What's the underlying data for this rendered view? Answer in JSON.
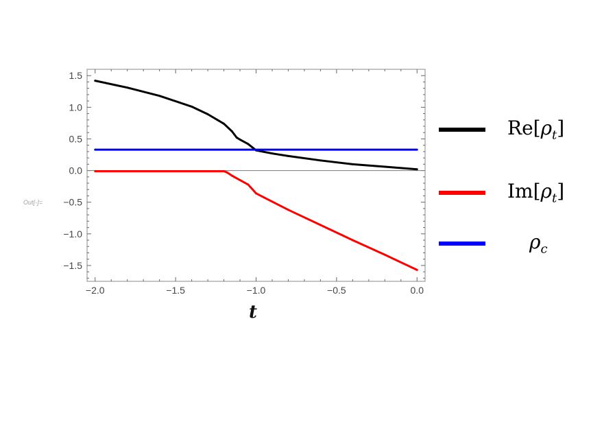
{
  "out_label": "Out[◦]=",
  "chart_data": {
    "type": "line",
    "xlabel": "t",
    "ylabel": "",
    "xlim": [
      -2.05,
      0.05
    ],
    "ylim": [
      -1.75,
      1.6
    ],
    "xticks": [
      -2.0,
      -1.5,
      -1.0,
      -0.5,
      0.0
    ],
    "xtick_labels": [
      "−2.0",
      "−1.5",
      "−1.0",
      "−0.5",
      "0.0"
    ],
    "yticks": [
      1.5,
      1.0,
      0.5,
      0.0,
      -0.5,
      -1.0,
      -1.5
    ],
    "ytick_labels": [
      "1.5",
      "1.0",
      "0.5",
      "0.0",
      "−0.5",
      "−1.0",
      "−1.5"
    ],
    "legend_position": "right",
    "series": [
      {
        "name": "Re[ρ_t]",
        "color": "#000000",
        "x": [
          -2.0,
          -1.8,
          -1.6,
          -1.4,
          -1.3,
          -1.2,
          -1.15,
          -1.12,
          -1.1,
          -1.05,
          -1.0,
          -0.9,
          -0.8,
          -0.6,
          -0.4,
          -0.2,
          0.0
        ],
        "y": [
          1.42,
          1.31,
          1.18,
          1.01,
          0.89,
          0.74,
          0.62,
          0.52,
          0.49,
          0.42,
          0.32,
          0.27,
          0.23,
          0.16,
          0.1,
          0.06,
          0.02
        ]
      },
      {
        "name": "Im[ρ_t]",
        "color": "#ff0000",
        "x": [
          -2.0,
          -1.5,
          -1.2,
          -1.18,
          -1.15,
          -1.1,
          -1.05,
          -1.0,
          -0.8,
          -0.6,
          -0.4,
          -0.2,
          0.0
        ],
        "y": [
          -0.01,
          -0.01,
          -0.01,
          -0.03,
          -0.08,
          -0.15,
          -0.22,
          -0.36,
          -0.62,
          -0.86,
          -1.1,
          -1.33,
          -1.57
        ]
      },
      {
        "name": "ρ_c",
        "color": "#0000ff",
        "x": [
          -2.0,
          0.0
        ],
        "y": [
          0.33,
          0.33
        ]
      }
    ]
  },
  "legend": [
    {
      "label_main": "Re[",
      "label_sym": "ρ",
      "label_sub": "t",
      "label_end": "]",
      "color": "#000000"
    },
    {
      "label_main": "Im[",
      "label_sym": "ρ",
      "label_sub": "t",
      "label_end": "]",
      "color": "#ff0000"
    },
    {
      "label_main": "",
      "label_sym": "ρ",
      "label_sub": "c",
      "label_end": "",
      "color": "#0000ff"
    }
  ]
}
